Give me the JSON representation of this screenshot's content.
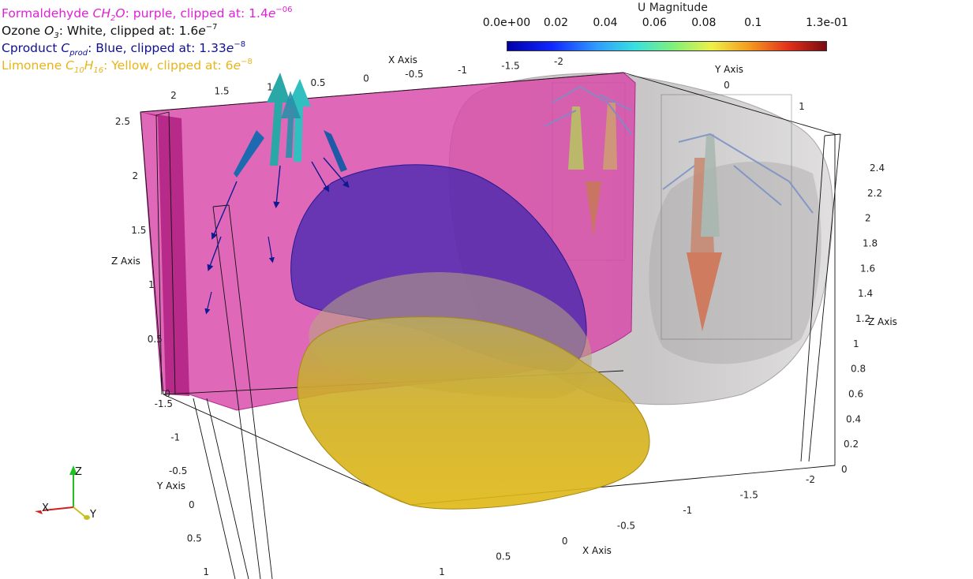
{
  "legend": [
    {
      "prefix": "Formaldehyde ",
      "formula_main": "CH",
      "formula_sub": "2",
      "formula_after": "O",
      "rest": ": purple, clipped at: 1.4",
      "exp_base": "e",
      "exp": "−06",
      "color": "#e020d8"
    },
    {
      "prefix": "Ozone ",
      "formula_main": "O",
      "formula_sub": "3",
      "formula_after": "",
      "rest": ": White, clipped at: 1.6",
      "exp_base": "e",
      "exp": "−7",
      "color": "#111111"
    },
    {
      "prefix": "Cproduct ",
      "formula_main": "C",
      "formula_sub": "prod",
      "formula_after": "",
      "rest": ": Blue, clipped at: 1.33",
      "exp_base": "e",
      "exp": "−8",
      "color": "#101090"
    },
    {
      "prefix": "Limonene ",
      "formula_main": "C",
      "formula_sub": "10",
      "formula_after": "H",
      "formula_sub2": "16",
      "rest": ": Yellow, clipped at: 6",
      "exp_base": "e",
      "exp": "−8",
      "color": "#e8b418"
    }
  ],
  "colorbar": {
    "title": "U Magnitude",
    "ticks": [
      "0.0e+00",
      "0.02",
      "0.04",
      "0.06",
      "0.08",
      "0.1",
      "1.3e-01"
    ],
    "tick_values": [
      0,
      0.02,
      0.04,
      0.06,
      0.08,
      0.1,
      0.13
    ],
    "min": 0,
    "max": 0.13,
    "colormap": [
      "#0000a8",
      "#1028ff",
      "#2f9cff",
      "#38e0e0",
      "#7ff07a",
      "#eef048",
      "#f49a1e",
      "#e2301a",
      "#7a0a10"
    ]
  },
  "axes": {
    "x_top": {
      "title": "X Axis",
      "ticks": [
        "2",
        "1.5",
        "1",
        "0.5",
        "0",
        "-0.5",
        "-1",
        "-1.5",
        "-2"
      ]
    },
    "y_top": {
      "title": "Y Axis",
      "ticks": [
        "0",
        "1"
      ]
    },
    "z_left": {
      "title": "Z Axis",
      "ticks": [
        "2.5",
        "2",
        "1.5",
        "1",
        "0.5",
        "0"
      ]
    },
    "y_left": {
      "title": "Y Axis",
      "ticks": [
        "-1.5",
        "-1",
        "-0.5",
        "0",
        "0.5",
        "1"
      ]
    },
    "z_right": {
      "title": "Z Axis",
      "ticks": [
        "2.4",
        "2.2",
        "2",
        "1.8",
        "1.6",
        "1.4",
        "1.2",
        "1",
        "0.8",
        "0.6",
        "0.4",
        "0.2",
        "0"
      ]
    },
    "x_bottom": {
      "title": "X Axis",
      "ticks": [
        "-2",
        "-1.5",
        "-1",
        "-0.5",
        "0",
        "0.5",
        "1"
      ]
    }
  },
  "orientation": {
    "x": "X",
    "y": "Y",
    "z": "Z"
  },
  "surfaces": {
    "formaldehyde": "#d040a8",
    "ozone": "#c8c4c4",
    "cproduct": "#3a22b0",
    "limonene": "#d8b418"
  }
}
